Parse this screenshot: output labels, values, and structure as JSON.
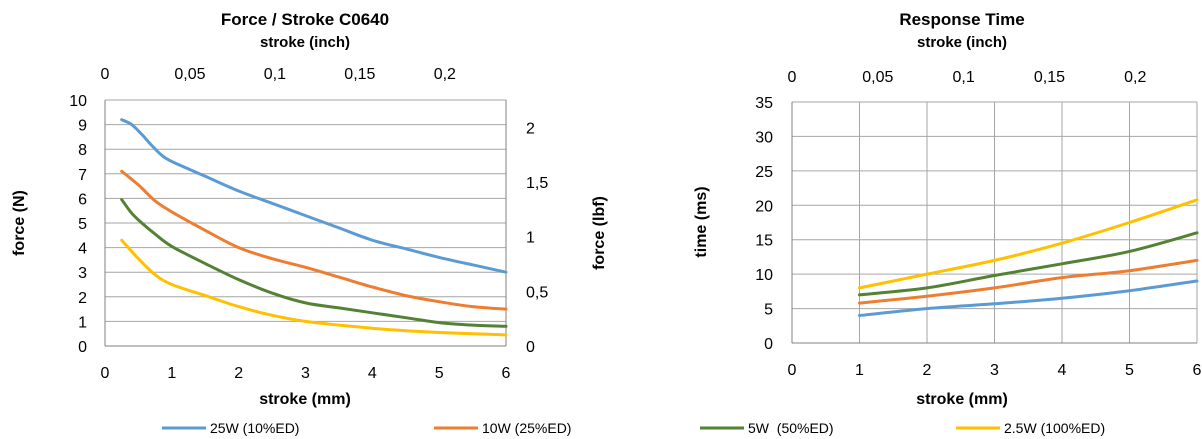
{
  "colors": {
    "series": [
      "#5b9bd5",
      "#ed7d31",
      "#548235",
      "#ffc000"
    ],
    "grid": "#a6a6a6",
    "axis": "#808080"
  },
  "legend": {
    "items": [
      "25W (10%ED)",
      "10W (25%ED)",
      "5W  (50%ED)",
      "2.5W (100%ED)"
    ],
    "placement": "bottom"
  },
  "chart_data": [
    {
      "type": "line",
      "title": "Force / Stroke  C0640",
      "x2label": "stroke (inch)",
      "xlabel": "stroke (mm)",
      "ylabel": "force (N)",
      "y2label": "force (lbf)",
      "xlim": [
        0,
        6
      ],
      "ylim": [
        0,
        10
      ],
      "y2lim": [
        0,
        2.25
      ],
      "x2lim": [
        0,
        0.236
      ],
      "xticks": [
        "0",
        "1",
        "2",
        "3",
        "4",
        "5",
        "6"
      ],
      "yticks": [
        "0",
        "1",
        "2",
        "3",
        "4",
        "5",
        "6",
        "7",
        "8",
        "9",
        "10"
      ],
      "y2ticks": [
        "0",
        "0,5",
        "1",
        "1,5",
        "2"
      ],
      "x2ticks": [
        "0",
        "0,05",
        "0,1",
        "0,15",
        "0,2"
      ],
      "grid": "horizontal",
      "series": [
        {
          "name": "25W (10%ED)",
          "x": [
            0.25,
            0.4,
            0.55,
            0.7,
            0.85,
            1,
            1.5,
            2,
            2.5,
            3,
            3.5,
            4,
            4.5,
            5,
            5.5,
            6
          ],
          "y": [
            9.2,
            9.0,
            8.6,
            8.15,
            7.75,
            7.5,
            6.9,
            6.3,
            5.8,
            5.3,
            4.8,
            4.3,
            3.95,
            3.6,
            3.3,
            3.0
          ]
        },
        {
          "name": "10W (25%ED)",
          "x": [
            0.25,
            0.5,
            0.75,
            1,
            1.5,
            2,
            2.5,
            3,
            3.5,
            4,
            4.5,
            5,
            5.5,
            6
          ],
          "y": [
            7.1,
            6.55,
            5.9,
            5.45,
            4.7,
            4.0,
            3.55,
            3.2,
            2.8,
            2.4,
            2.05,
            1.8,
            1.6,
            1.5
          ]
        },
        {
          "name": "5W  (50%ED)",
          "x": [
            0.25,
            0.4,
            0.55,
            0.75,
            1,
            1.5,
            2,
            2.5,
            3,
            3.5,
            4,
            4.5,
            5,
            5.5,
            6
          ],
          "y": [
            5.95,
            5.4,
            5.0,
            4.55,
            4.05,
            3.35,
            2.7,
            2.15,
            1.75,
            1.55,
            1.35,
            1.15,
            0.95,
            0.85,
            0.8
          ]
        },
        {
          "name": "2.5W (100%ED)",
          "x": [
            0.25,
            0.5,
            0.75,
            1,
            1.5,
            2,
            2.5,
            3,
            3.5,
            4,
            4.5,
            5,
            5.5,
            6
          ],
          "y": [
            4.3,
            3.55,
            2.9,
            2.5,
            2.05,
            1.6,
            1.25,
            1.0,
            0.85,
            0.72,
            0.62,
            0.55,
            0.5,
            0.45
          ]
        }
      ]
    },
    {
      "type": "line",
      "title": "Response Time",
      "x2label": "stroke (inch)",
      "xlabel": "stroke (mm)",
      "ylabel": "time (ms)",
      "xlim": [
        0,
        6
      ],
      "ylim": [
        0,
        35
      ],
      "x2lim": [
        0,
        0.236
      ],
      "xticks": [
        "0",
        "1",
        "2",
        "3",
        "4",
        "5",
        "6"
      ],
      "yticks": [
        "0",
        "5",
        "10",
        "15",
        "20",
        "25",
        "30",
        "35"
      ],
      "x2ticks": [
        "0",
        "0,05",
        "0,1",
        "0,15",
        "0,2"
      ],
      "grid": "both",
      "series": [
        {
          "name": "25W (10%ED)",
          "x": [
            1,
            2,
            3,
            4,
            5,
            6
          ],
          "y": [
            4.0,
            5.0,
            5.7,
            6.5,
            7.6,
            9.0
          ]
        },
        {
          "name": "10W (25%ED)",
          "x": [
            1,
            2,
            3,
            4,
            5,
            6
          ],
          "y": [
            5.8,
            6.8,
            8.0,
            9.5,
            10.5,
            12.0
          ]
        },
        {
          "name": "5W  (50%ED)",
          "x": [
            1,
            2,
            3,
            4,
            5,
            6
          ],
          "y": [
            7.0,
            8.0,
            9.8,
            11.5,
            13.3,
            16.0
          ]
        },
        {
          "name": "2.5W (100%ED)",
          "x": [
            1,
            2,
            3,
            4,
            5,
            6
          ],
          "y": [
            8.0,
            10.0,
            12.0,
            14.5,
            17.5,
            20.8
          ]
        }
      ]
    }
  ]
}
